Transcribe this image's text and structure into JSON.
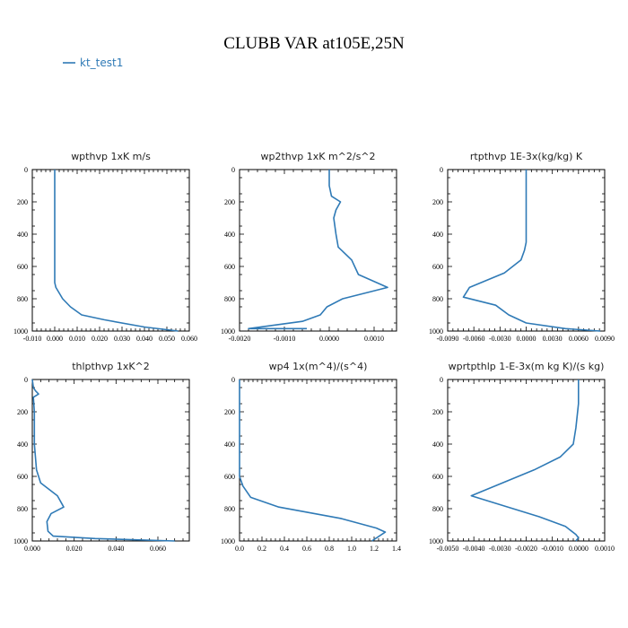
{
  "title": "CLUBB VAR at105E,25N",
  "legend": [
    {
      "label": "kt_test1",
      "color": "#2f7ab6"
    }
  ],
  "line_color": "#2f7ab6",
  "chart_data": [
    {
      "type": "line",
      "title": "wpthvp   1xK m/s",
      "x_range": [
        -0.01,
        0.06
      ],
      "x_ticks": [
        "-0.010",
        "0.000",
        "0.010",
        "0.020",
        "0.030",
        "0.040",
        "0.050",
        "0.060"
      ],
      "x_tick_values": [
        -0.01,
        0.0,
        0.01,
        0.02,
        0.03,
        0.04,
        0.05,
        0.06
      ],
      "y_range": [
        0,
        1000
      ],
      "y_inverted": true,
      "y_ticks": [
        "0",
        "200",
        "400",
        "600",
        "800",
        "1000"
      ],
      "y_tick_values": [
        0,
        200,
        400,
        600,
        800,
        1000
      ],
      "series": [
        {
          "name": "kt_test1",
          "x": [
            0.0,
            0.0,
            0.0,
            0.0,
            0.0,
            0.0005,
            0.0035,
            0.007,
            0.012,
            0.022,
            0.04,
            0.055
          ],
          "y": [
            0,
            200,
            400,
            600,
            700,
            730,
            800,
            850,
            900,
            930,
            975,
            1000
          ]
        }
      ]
    },
    {
      "type": "line",
      "title": "wp2thvp   1xK m^2/s^2",
      "x_range": [
        -0.002,
        0.0015
      ],
      "x_ticks": [
        "-0.0020",
        "-0.0010",
        "0.0000",
        "0.0010"
      ],
      "x_tick_values": [
        -0.002,
        -0.001,
        0.0,
        0.001
      ],
      "y_range": [
        0,
        1000
      ],
      "y_inverted": true,
      "y_ticks": [
        "0",
        "200",
        "400",
        "600",
        "800",
        "1000"
      ],
      "y_tick_values": [
        0,
        200,
        400,
        600,
        800,
        1000
      ],
      "series": [
        {
          "name": "kt_test1",
          "x": [
            0.0,
            0.0,
            5e-05,
            0.00025,
            0.00015,
            0.0001,
            0.00015,
            0.0002,
            0.0005,
            0.00065,
            0.0013,
            0.0003,
            -5e-05,
            -0.0002,
            -0.0006,
            -0.0018,
            -0.0014,
            -0.0005
          ],
          "y": [
            0,
            100,
            165,
            200,
            250,
            300,
            400,
            480,
            560,
            650,
            730,
            800,
            850,
            900,
            940,
            985,
            985,
            985
          ]
        }
      ]
    },
    {
      "type": "line",
      "title": "rtpthvp   1E-3x(kg/kg) K",
      "x_range": [
        -0.009,
        0.009
      ],
      "x_ticks": [
        "-0.0090",
        "-0.0060",
        "-0.0030",
        "0.0000",
        "0.0030",
        "0.0060",
        "0.0090"
      ],
      "x_tick_values": [
        -0.009,
        -0.006,
        -0.003,
        0.0,
        0.003,
        0.006,
        0.009
      ],
      "y_range": [
        0,
        1000
      ],
      "y_inverted": true,
      "y_ticks": [
        "0",
        "200",
        "400",
        "600",
        "800",
        "1000"
      ],
      "y_tick_values": [
        0,
        200,
        400,
        600,
        800,
        1000
      ],
      "series": [
        {
          "name": "kt_test1",
          "x": [
            0.0,
            0.0,
            0.0,
            -0.0002,
            -0.0006,
            -0.0025,
            -0.0065,
            -0.0072,
            -0.0035,
            -0.002,
            0.0,
            0.0045,
            0.0085
          ],
          "y": [
            0,
            200,
            450,
            500,
            560,
            640,
            730,
            790,
            840,
            900,
            950,
            985,
            1000
          ]
        }
      ]
    },
    {
      "type": "line",
      "title": "thlpthvp   1xK^2",
      "x_range": [
        0.0,
        0.075
      ],
      "x_ticks": [
        "0.000",
        "0.020",
        "0.040",
        "0.060"
      ],
      "x_tick_values": [
        0.0,
        0.02,
        0.04,
        0.06
      ],
      "y_range": [
        0,
        1000
      ],
      "y_inverted": true,
      "y_ticks": [
        "0",
        "200",
        "400",
        "600",
        "800",
        "1000"
      ],
      "y_tick_values": [
        0,
        200,
        400,
        600,
        800,
        1000
      ],
      "series": [
        {
          "name": "kt_test1",
          "x": [
            0.0,
            0.0005,
            0.0015,
            0.003,
            0.0005,
            0.001,
            0.001,
            0.002,
            0.004,
            0.012,
            0.015,
            0.009,
            0.007,
            0.0075,
            0.01,
            0.03,
            0.068
          ],
          "y": [
            0,
            50,
            70,
            90,
            110,
            200,
            400,
            560,
            640,
            720,
            790,
            830,
            880,
            940,
            970,
            985,
            1000
          ]
        }
      ]
    },
    {
      "type": "line",
      "title": "wp4   1x(m^4)/(s^4)",
      "x_range": [
        0.0,
        1.4
      ],
      "x_ticks": [
        "0.0",
        "0.2",
        "0.4",
        "0.6",
        "0.8",
        "1.0",
        "1.2",
        "1.4"
      ],
      "x_tick_values": [
        0.0,
        0.2,
        0.4,
        0.6,
        0.8,
        1.0,
        1.2,
        1.4
      ],
      "y_range": [
        0,
        1000
      ],
      "y_inverted": true,
      "y_ticks": [
        "0",
        "200",
        "400",
        "600",
        "800",
        "1000"
      ],
      "y_tick_values": [
        0,
        200,
        400,
        600,
        800,
        1000
      ],
      "series": [
        {
          "name": "kt_test1",
          "x": [
            0.0,
            0.0,
            0.0,
            0.03,
            0.1,
            0.35,
            0.9,
            1.22,
            1.3,
            1.18
          ],
          "y": [
            0,
            400,
            600,
            660,
            730,
            790,
            860,
            920,
            945,
            1000
          ]
        }
      ]
    },
    {
      "type": "line",
      "title": "wprtpthlp   1-E-3x(m kg K)/(s kg)",
      "x_range": [
        -0.005,
        0.001
      ],
      "x_ticks": [
        "-0.0050",
        "-0.0040",
        "-0.0030",
        "-0.0020",
        "-0.0010",
        "0.0000",
        "0.0010"
      ],
      "x_tick_values": [
        -0.005,
        -0.004,
        -0.003,
        -0.002,
        -0.001,
        0.0,
        0.001
      ],
      "y_range": [
        0,
        1000
      ],
      "y_inverted": true,
      "y_ticks": [
        "0",
        "200",
        "400",
        "600",
        "800",
        "1000"
      ],
      "y_tick_values": [
        0,
        200,
        400,
        600,
        800,
        1000
      ],
      "series": [
        {
          "name": "kt_test1",
          "x": [
            0.0,
            0.0,
            -0.0001,
            -0.0002,
            -0.0007,
            -0.0017,
            -0.0041,
            -0.0015,
            -0.0005,
            -0.0001,
            0.0,
            -0.0001
          ],
          "y": [
            0,
            150,
            300,
            400,
            480,
            560,
            720,
            850,
            910,
            960,
            980,
            1000
          ]
        }
      ]
    }
  ]
}
